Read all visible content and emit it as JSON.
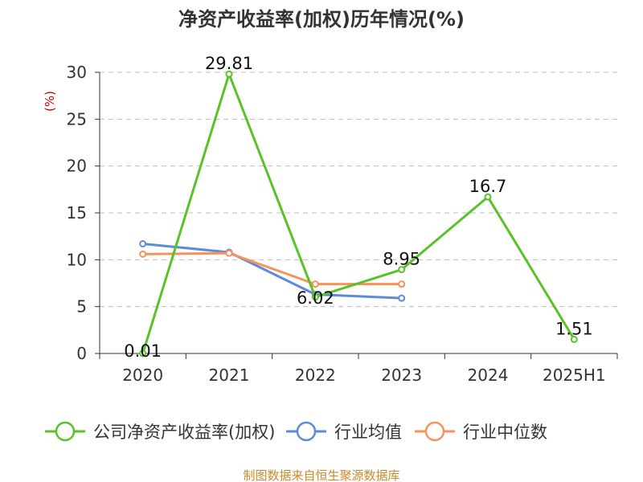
{
  "chart_data": {
    "type": "line",
    "title": "净资产收益率(加权)历年情况(%)",
    "ylabel": "(%)",
    "categories": [
      "2020",
      "2021",
      "2022",
      "2023",
      "2024",
      "2025H1"
    ],
    "ylim": [
      0,
      30
    ],
    "yticks": [
      0,
      5,
      10,
      15,
      20,
      25,
      30
    ],
    "grid": true,
    "legend_position": "bottom",
    "series": [
      {
        "name": "公司净资产收益率(加权)",
        "color": "#5ac229",
        "values": [
          0.01,
          29.81,
          6.02,
          8.95,
          16.7,
          1.51
        ],
        "labels": [
          "0.01",
          "29.81",
          "6.02",
          "8.95",
          "16.7",
          "1.51"
        ]
      },
      {
        "name": "行业均值",
        "color": "#5b8bd9",
        "values": [
          11.7,
          10.8,
          6.3,
          5.9,
          null,
          null
        ]
      },
      {
        "name": "行业中位数",
        "color": "#f5935a",
        "values": [
          10.6,
          10.7,
          7.4,
          7.4,
          null,
          null
        ]
      }
    ]
  },
  "footer": {
    "source": "制图数据来自恒生聚源数据库"
  }
}
